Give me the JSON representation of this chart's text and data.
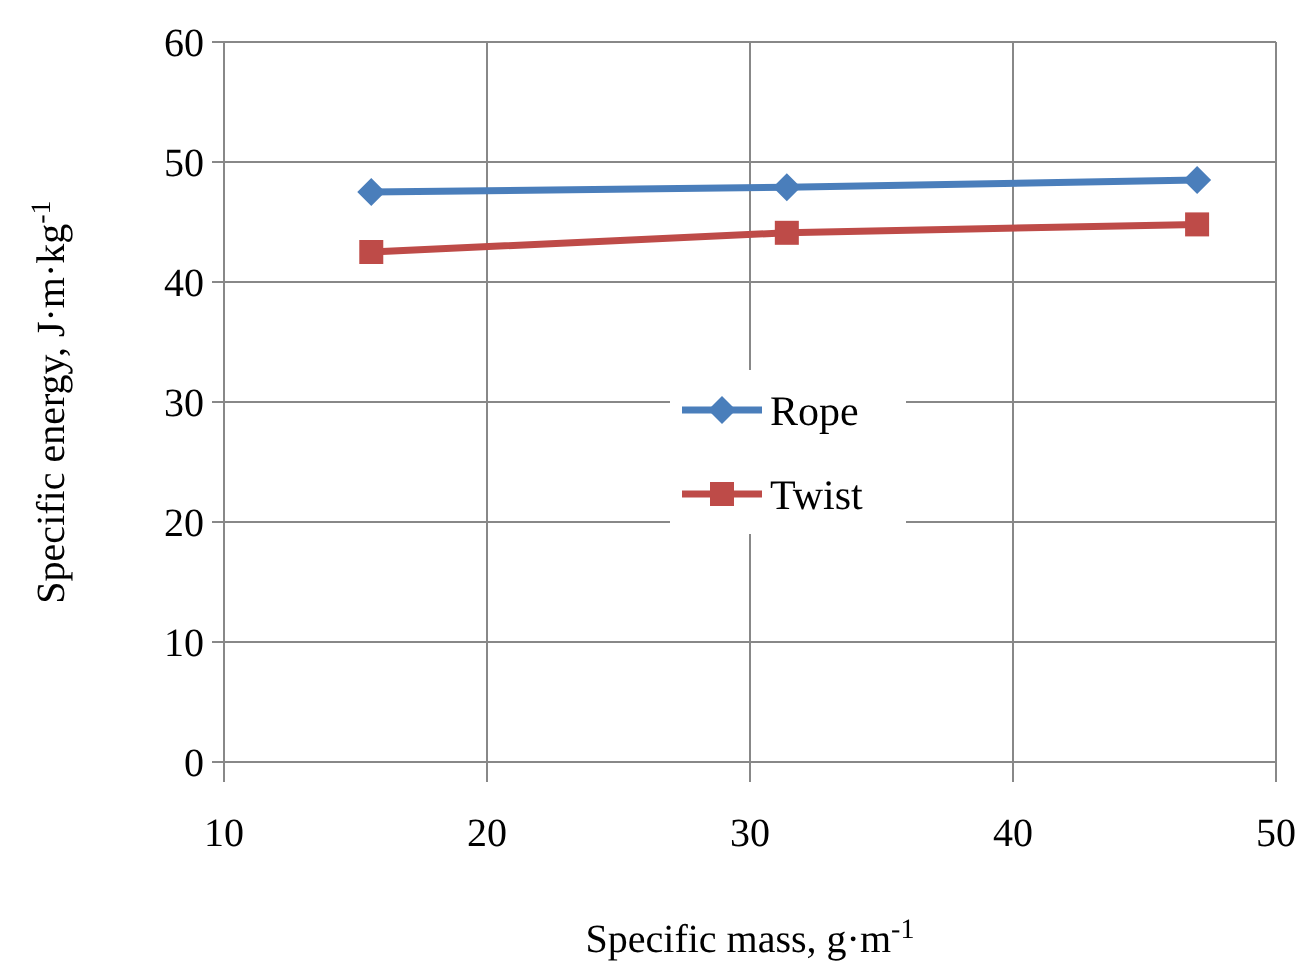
{
  "chart_data": {
    "type": "line",
    "xlabel": "Specific mass, g·m$^{-1}$",
    "ylabel": "Specific energy, J·m·kg$^{-1}$",
    "x": [
      15.6,
      31.4,
      47.0
    ],
    "series": [
      {
        "name": "Rope",
        "color": "#4a7ebb",
        "values": [
          47.5,
          47.9,
          48.5
        ],
        "marker": "diamond"
      },
      {
        "name": "Twist",
        "color": "#be4b48",
        "values": [
          42.5,
          44.1,
          44.8
        ],
        "marker": "square"
      }
    ],
    "xlim": [
      10,
      50
    ],
    "xticks": [
      10,
      20,
      30,
      40,
      50
    ],
    "ylim": [
      0,
      60
    ],
    "yticks": [
      0,
      10,
      20,
      30,
      40,
      50,
      60
    ],
    "grid": true,
    "legend": "center",
    "line_style": "solid"
  }
}
